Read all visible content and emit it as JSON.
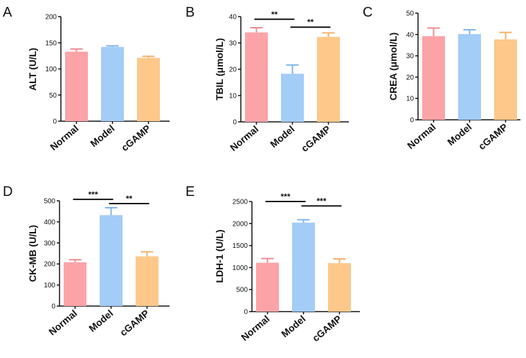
{
  "colors": {
    "fills": [
      "#fca3a8",
      "#a3ccf7",
      "#fdc88a"
    ],
    "errors": [
      "#f08a91",
      "#7fb3ee",
      "#f7b06a"
    ],
    "text": "#111111"
  },
  "chart_data": [
    {
      "id": "A",
      "letter": "A",
      "type": "bar",
      "ylabel": "ALT (U/L)",
      "categories": [
        "Normal",
        "Model",
        "cGAMP"
      ],
      "values": [
        133,
        142,
        121
      ],
      "errors": [
        5,
        2,
        3
      ],
      "ylim": [
        0,
        200
      ],
      "yticks": [
        0,
        50,
        100,
        150,
        200
      ],
      "tick_labels": [
        "0",
        "50",
        "100",
        "150",
        "200"
      ],
      "significance": []
    },
    {
      "id": "B",
      "letter": "B",
      "type": "bar",
      "ylabel": "TBIL (μmol/L)",
      "categories": [
        "Normal",
        "Model",
        "cGAMP"
      ],
      "values": [
        34,
        18.3,
        32.3
      ],
      "errors": [
        1.8,
        3.3,
        1.5
      ],
      "ylim": [
        0,
        40
      ],
      "yticks": [
        0,
        10,
        20,
        30,
        40
      ],
      "tick_labels": [
        "0",
        "10",
        "20",
        "30",
        "40"
      ],
      "significance": [
        {
          "from": 0,
          "to": 1,
          "y": 39,
          "label": "**"
        },
        {
          "from": 1,
          "to": 2,
          "y": 36,
          "label": "**"
        }
      ]
    },
    {
      "id": "C",
      "letter": "C",
      "type": "bar",
      "ylabel": "CREA (μmol/L)",
      "categories": [
        "Normal",
        "Model",
        "cGAMP"
      ],
      "values": [
        39.2,
        40.2,
        37.7
      ],
      "errors": [
        3.8,
        2,
        3.3
      ],
      "ylim": [
        0,
        50
      ],
      "yticks": [
        0,
        10,
        20,
        30,
        40,
        50
      ],
      "tick_labels": [
        "0",
        "10",
        "20",
        "30",
        "40",
        "50"
      ],
      "significance": []
    },
    {
      "id": "D",
      "letter": "D",
      "type": "bar",
      "ylabel": "CK-MB (U/L)",
      "categories": [
        "Normal",
        "Model",
        "cGAMP"
      ],
      "values": [
        208,
        432,
        236
      ],
      "errors": [
        12,
        35,
        22
      ],
      "ylim": [
        0,
        500
      ],
      "yticks": [
        0,
        100,
        200,
        300,
        400,
        500
      ],
      "tick_labels": [
        "0",
        "100",
        "200",
        "300",
        "400",
        "500"
      ],
      "significance": [
        {
          "from": 0,
          "to": 1,
          "y": 507,
          "label": "***"
        },
        {
          "from": 1,
          "to": 2,
          "y": 487,
          "label": "**"
        }
      ]
    },
    {
      "id": "E",
      "letter": "E",
      "type": "bar",
      "ylabel": "LDH-1 (U/L)",
      "categories": [
        "Normal",
        "Model",
        "cGAMP"
      ],
      "values": [
        1110,
        2020,
        1100
      ],
      "errors": [
        95,
        65,
        95
      ],
      "ylim": [
        0,
        2500
      ],
      "yticks": [
        0,
        500,
        1000,
        1500,
        2000,
        2500
      ],
      "tick_labels": [
        "0",
        "500",
        "1000",
        "1500",
        "2000",
        "2500"
      ],
      "significance": [
        {
          "from": 0,
          "to": 1,
          "y": 2500,
          "label": "***"
        },
        {
          "from": 1,
          "to": 2,
          "y": 2400,
          "label": "***"
        }
      ]
    }
  ]
}
